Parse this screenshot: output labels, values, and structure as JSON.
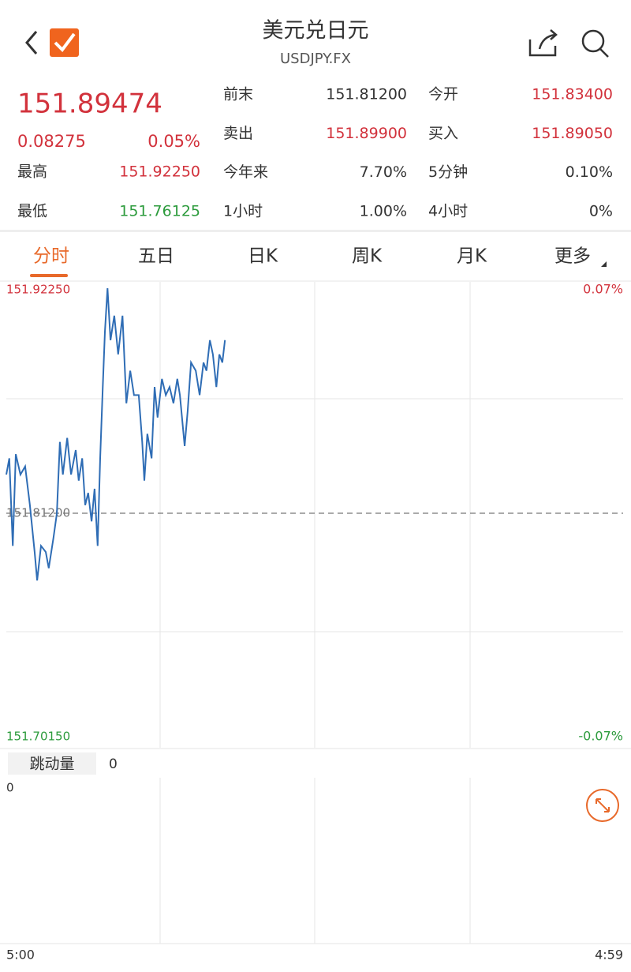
{
  "header": {
    "title": "美元兑日元",
    "subtitle": "USDJPY.FX"
  },
  "quote": {
    "price": "151.89474",
    "change": "0.08275",
    "change_pct": "0.05%",
    "high_label": "最高",
    "high": "151.92250",
    "low_label": "最低",
    "low": "151.76125"
  },
  "stats": [
    [
      "前末",
      "151.81200",
      "今开",
      "151.83400"
    ],
    [
      "卖出",
      "151.89900",
      "买入",
      "151.89050"
    ],
    [
      "今年来",
      "7.70%",
      "5分钟",
      "0.10%"
    ],
    [
      "1小时",
      "1.00%",
      "4小时",
      "0%"
    ]
  ],
  "tabs": [
    "分时",
    "五日",
    "日K",
    "周K",
    "月K",
    "更多"
  ],
  "volume": {
    "label": "跳动量",
    "value": "0",
    "axis": "0"
  },
  "chart_data": {
    "type": "line",
    "color": "#2f6db5",
    "x": [
      0,
      7,
      15,
      22,
      33,
      44,
      55,
      66,
      72,
      81,
      92,
      99,
      110,
      118,
      125,
      132,
      142,
      151,
      162,
      169,
      177,
      184,
      191,
      199,
      206,
      213,
      219,
      225,
      230,
      236,
      243,
      252,
      261,
      271,
      280,
      289,
      298,
      309,
      317,
      322,
      329,
      339,
      346,
      353,
      363,
      372,
      381,
      390,
      399,
      405,
      416,
      423,
      431,
      442,
      451,
      460,
      467,
      475,
      482,
      490,
      497,
      504,
      510
    ],
    "values": [
      151.831,
      151.839,
      151.796,
      151.841,
      151.831,
      151.835,
      151.816,
      151.793,
      151.779,
      151.796,
      151.793,
      151.785,
      151.8,
      151.812,
      151.847,
      151.831,
      151.849,
      151.831,
      151.843,
      151.828,
      151.839,
      151.816,
      151.822,
      151.808,
      151.824,
      151.796,
      151.839,
      151.874,
      151.901,
      151.9225,
      151.897,
      151.909,
      151.89,
      151.909,
      151.866,
      151.882,
      151.87,
      151.87,
      151.847,
      151.828,
      151.851,
      151.839,
      151.874,
      151.859,
      151.878,
      151.87,
      151.874,
      151.866,
      151.878,
      151.87,
      151.845,
      151.862,
      151.886,
      151.882,
      151.87,
      151.886,
      151.882,
      151.897,
      151.89,
      151.874,
      151.89,
      151.886,
      151.897
    ],
    "xlim": [
      0,
      1439
    ],
    "xticks": [
      {
        "value": 0,
        "label": "5:00"
      },
      {
        "value": 1439,
        "label": "4:59"
      }
    ],
    "ylim": [
      151.7015,
      151.9225
    ],
    "yticks": [
      {
        "value": 151.7015,
        "label": "151.70150"
      },
      {
        "value": 151.812,
        "label": "151.81200"
      },
      {
        "value": 151.9225,
        "label": "151.92250"
      }
    ],
    "y2lim": [
      -0.07,
      0.07
    ],
    "y2ticks": [
      {
        "value": -0.07,
        "label": "-0.07%"
      },
      {
        "value": 0.07,
        "label": "0.07%"
      }
    ]
  }
}
